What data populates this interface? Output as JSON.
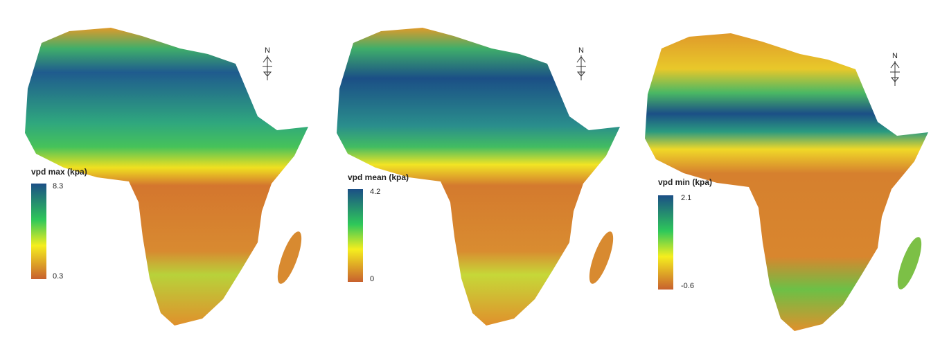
{
  "panels": [
    {
      "legend": {
        "title": "vpd max (kpa)",
        "max": "8.3",
        "min": "0.3"
      },
      "north": "N"
    },
    {
      "legend": {
        "title": "vpd mean (kpa)",
        "max": "4.2",
        "min": "0"
      },
      "north": "N"
    },
    {
      "legend": {
        "title": "vpd min (kpa)",
        "max": "2.1",
        "min": "-0.6"
      },
      "north": "N"
    }
  ]
}
